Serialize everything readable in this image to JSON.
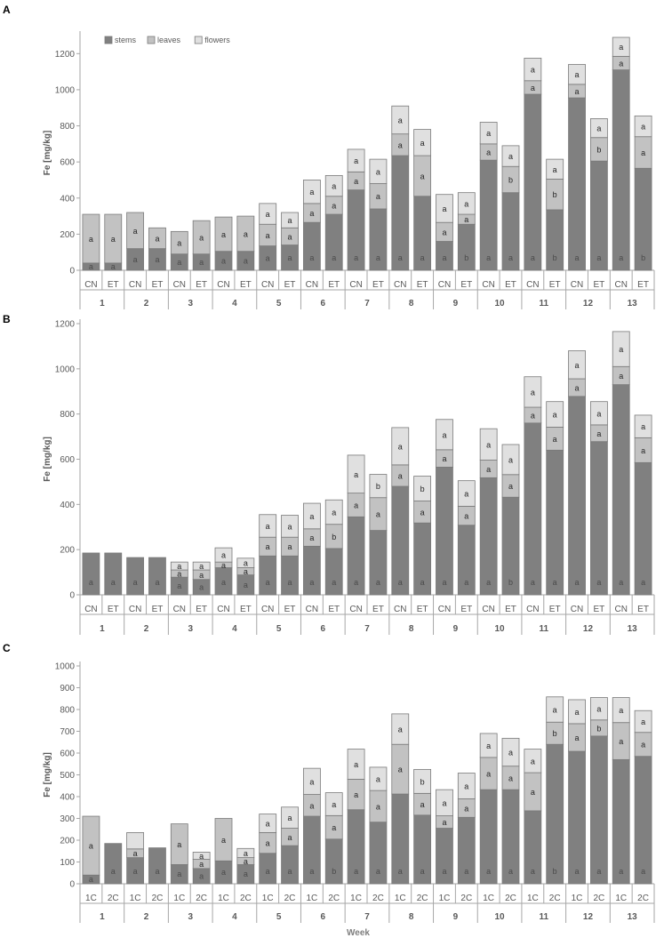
{
  "chart_data": [
    {
      "type": "bar",
      "panel_label": "A",
      "ylabel": "Fe [mg/kg]",
      "ylim": [
        0,
        1300
      ],
      "yticks": [
        0,
        200,
        400,
        600,
        800,
        1000,
        1200
      ],
      "weeks": [
        "1",
        "2",
        "3",
        "4",
        "5",
        "6",
        "7",
        "8",
        "9",
        "10",
        "11",
        "12",
        "13"
      ],
      "groups": [
        "CN",
        "ET"
      ],
      "legend": [
        "stems",
        "leaves",
        "flowers"
      ],
      "legend_position": "top-left",
      "stacked_totals": {
        "stems": [
          40,
          40,
          120,
          120,
          90,
          90,
          105,
          105,
          135,
          140,
          265,
          310,
          445,
          340,
          635,
          410,
          160,
          255,
          610,
          430,
          975,
          335,
          955,
          605,
          1110,
          565
        ],
        "leaves": [
          310,
          310,
          320,
          235,
          215,
          275,
          295,
          300,
          255,
          235,
          370,
          410,
          545,
          480,
          755,
          635,
          265,
          310,
          700,
          575,
          1050,
          505,
          1030,
          735,
          1185,
          740
        ],
        "flowers": [
          310,
          310,
          320,
          235,
          215,
          275,
          295,
          300,
          370,
          320,
          500,
          525,
          670,
          615,
          910,
          780,
          420,
          430,
          820,
          690,
          1175,
          615,
          1140,
          840,
          1290,
          855
        ]
      },
      "letters": {
        "stems": [
          "a",
          "a",
          "a",
          "a",
          "a",
          "a",
          "a",
          "a",
          "a",
          "a",
          "a",
          "a",
          "a",
          "a",
          "a",
          "a",
          "a",
          "b",
          "a",
          "a",
          "a",
          "b",
          "a",
          "a",
          "a",
          "b"
        ],
        "leaves": [
          "a",
          "a",
          "a",
          "a",
          "a",
          "a",
          "a",
          "a",
          "a",
          "a",
          "a",
          "a",
          "a",
          "a",
          "a",
          "a",
          "a",
          "a",
          "a",
          "b",
          "a",
          "b",
          "a",
          "b",
          "a",
          "a"
        ],
        "flowers": [
          "",
          "",
          "",
          "",
          "",
          "",
          "",
          "",
          "a",
          "a",
          "a",
          "a",
          "a",
          "a",
          "a",
          "a",
          "a",
          "a",
          "a",
          "a",
          "a",
          "a",
          "a",
          "a",
          "a",
          "a"
        ]
      }
    },
    {
      "type": "bar",
      "panel_label": "B",
      "ylabel": "Fe [mg/kg]",
      "ylim": [
        0,
        1200
      ],
      "yticks": [
        0,
        200,
        400,
        600,
        800,
        1000,
        1200
      ],
      "weeks": [
        "1",
        "2",
        "3",
        "4",
        "5",
        "6",
        "7",
        "8",
        "9",
        "10",
        "11",
        "12",
        "13"
      ],
      "groups": [
        "CN",
        "ET"
      ],
      "stacked_totals": {
        "stems": [
          185,
          185,
          165,
          165,
          78,
          68,
          120,
          88,
          172,
          172,
          215,
          205,
          345,
          285,
          480,
          318,
          565,
          308,
          518,
          432,
          760,
          640,
          878,
          678,
          930,
          585
        ],
        "leaves": [
          185,
          185,
          165,
          165,
          110,
          110,
          145,
          120,
          255,
          255,
          292,
          312,
          450,
          430,
          575,
          415,
          642,
          392,
          596,
          532,
          830,
          742,
          956,
          752,
          1010,
          695
        ],
        "flowers": [
          185,
          185,
          165,
          165,
          145,
          145,
          208,
          162,
          355,
          352,
          405,
          420,
          618,
          533,
          740,
          525,
          776,
          505,
          735,
          665,
          965,
          855,
          1080,
          855,
          1165,
          795
        ]
      },
      "letters": {
        "stems": [
          "a",
          "a",
          "a",
          "a",
          "a",
          "a",
          "a",
          "a",
          "a",
          "a",
          "a",
          "a",
          "a",
          "a",
          "a",
          "a",
          "a",
          "a",
          "a",
          "b",
          "a",
          "a",
          "a",
          "a",
          "a",
          "a"
        ],
        "leaves": [
          "",
          "",
          "",
          "",
          "a",
          "a",
          "a",
          "a",
          "a",
          "a",
          "a",
          "b",
          "a",
          "a",
          "a",
          "a",
          "a",
          "a",
          "a",
          "a",
          "a",
          "a",
          "a",
          "a",
          "a",
          "a"
        ],
        "flowers": [
          "",
          "",
          "",
          "",
          "a",
          "a",
          "a",
          "a",
          "a",
          "a",
          "a",
          "a",
          "a",
          "b",
          "a",
          "b",
          "a",
          "a",
          "a",
          "a",
          "a",
          "a",
          "a",
          "a",
          "a",
          "a"
        ]
      }
    },
    {
      "type": "bar",
      "panel_label": "C",
      "ylabel": "Fe [mg/kg]",
      "xlabel": "Week",
      "ylim": [
        0,
        1000
      ],
      "yticks": [
        0,
        100,
        200,
        300,
        400,
        500,
        600,
        700,
        800,
        900,
        1000
      ],
      "weeks": [
        "1",
        "2",
        "3",
        "4",
        "5",
        "6",
        "7",
        "8",
        "9",
        "10",
        "11",
        "12",
        "13"
      ],
      "groups": [
        "1C",
        "2C"
      ],
      "stacked_totals": {
        "stems": [
          40,
          185,
          120,
          165,
          88,
          70,
          105,
          88,
          140,
          175,
          310,
          205,
          340,
          283,
          412,
          315,
          255,
          305,
          432,
          432,
          335,
          640,
          608,
          678,
          570,
          585
        ],
        "leaves": [
          310,
          185,
          160,
          165,
          275,
          112,
          300,
          120,
          235,
          255,
          410,
          313,
          480,
          428,
          640,
          415,
          312,
          390,
          580,
          540,
          510,
          742,
          735,
          752,
          740,
          695
        ],
        "flowers": [
          310,
          185,
          235,
          165,
          275,
          145,
          300,
          162,
          320,
          352,
          530,
          418,
          618,
          535,
          780,
          525,
          432,
          508,
          690,
          668,
          618,
          858,
          845,
          855,
          855,
          795
        ]
      },
      "letters": {
        "stems": [
          "a",
          "a",
          "a",
          "a",
          "a",
          "a",
          "a",
          "a",
          "a",
          "a",
          "a",
          "b",
          "a",
          "a",
          "a",
          "a",
          "a",
          "a",
          "a",
          "a",
          "a",
          "b",
          "a",
          "a",
          "a",
          "a"
        ],
        "leaves": [
          "a",
          "",
          "a",
          "",
          "a",
          "a",
          "a",
          "a",
          "a",
          "a",
          "a",
          "a",
          "a",
          "a",
          "a",
          "a",
          "a",
          "a",
          "a",
          "a",
          "a",
          "b",
          "a",
          "b",
          "a",
          "a"
        ],
        "flowers": [
          "",
          "",
          "",
          "",
          "",
          "a",
          "",
          "a",
          "a",
          "a",
          "a",
          "a",
          "a",
          "a",
          "a",
          "b",
          "a",
          "a",
          "a",
          "a",
          "a",
          "a",
          "a",
          "a",
          "a",
          "a"
        ]
      }
    }
  ],
  "colors": {
    "stems": "#808080",
    "leaves": "#c2c2c2",
    "flowers": "#e0e0e0",
    "bar_edge": "#7a7a7a",
    "axis": "#a6a6a6",
    "text": "#595959",
    "panel_label": "#000000"
  }
}
